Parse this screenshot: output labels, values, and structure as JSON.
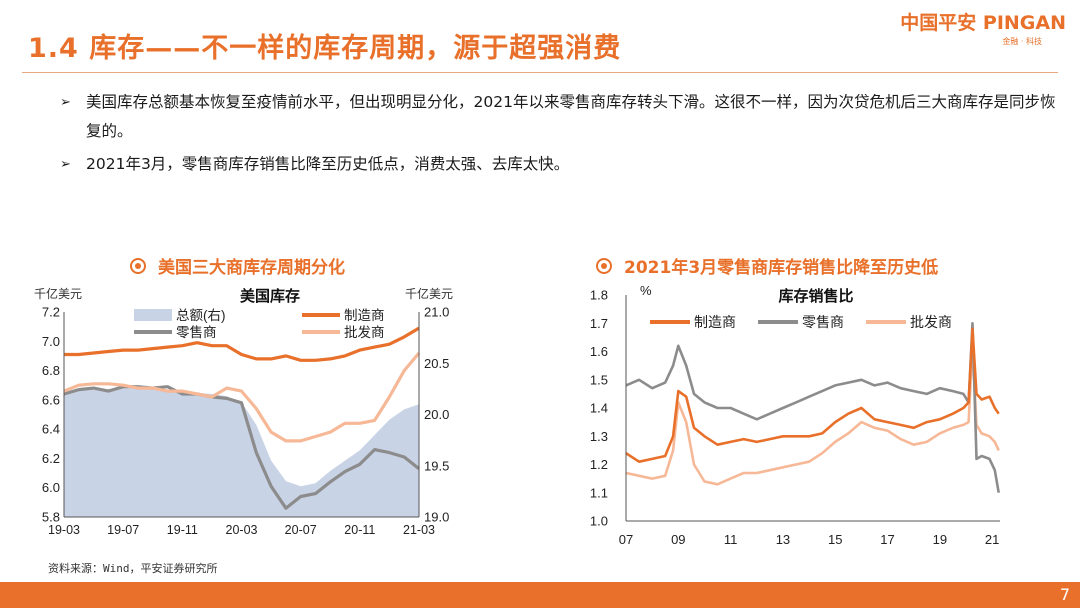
{
  "header": {
    "title": "1.4 库存——不一样的库存周期，源于超强消费",
    "logo_main": "中国平安 PINGAN",
    "logo_sub": "金融 · 科技"
  },
  "bullets": [
    {
      "arrow": "➢",
      "text": "美国库存总额基本恢复至疫情前水平，但出现明显分化，2021年以来零售商库存转头下滑。这很不一样，因为次贷危机后三大商库存是同步恢复的。"
    },
    {
      "arrow": "➢",
      "text": "2021年3月，零售商库存销售比降至历史低点，消费太强、去库太快。"
    }
  ],
  "charts": {
    "left_title": "美国三大商库存周期分化",
    "right_title": "2021年3月零售商库存销售比降至历史低"
  },
  "source": "资料来源：Wind，平安证券研究所",
  "page_number": "7",
  "colors": {
    "accent": "#e8702a",
    "manufacturer": "#e8702a",
    "retail": "#8c8c8c",
    "wholesale": "#f6b896",
    "total": "#c9d3e6"
  },
  "chart_data": [
    {
      "type": "line",
      "title": "美国库存",
      "ylabel_left": "千亿美元",
      "ylabel_right": "千亿美元",
      "ylim": [
        5.8,
        7.2
      ],
      "y2lim": [
        19.0,
        21.0
      ],
      "yticks": [
        "7.2",
        "7.0",
        "6.8",
        "6.6",
        "6.4",
        "6.2",
        "6.0",
        "5.8"
      ],
      "y2ticks": [
        "21.0",
        "20.5",
        "20.0",
        "19.5",
        "19.0"
      ],
      "x": [
        "19-03",
        "19-04",
        "19-05",
        "19-06",
        "19-07",
        "19-08",
        "19-09",
        "19-10",
        "19-11",
        "19-12",
        "20-01",
        "20-02",
        "20-03",
        "20-04",
        "20-05",
        "20-06",
        "20-07",
        "20-08",
        "20-09",
        "20-10",
        "20-11",
        "20-12",
        "21-01",
        "21-02",
        "21-03"
      ],
      "xticks": [
        "19-03",
        "19-07",
        "19-11",
        "20-03",
        "20-07",
        "20-11",
        "21-03"
      ],
      "series": [
        {
          "name": "总额(右)",
          "kind": "area",
          "axis": "right",
          "values": [
            20.2,
            20.23,
            20.24,
            20.25,
            20.26,
            20.25,
            20.26,
            20.24,
            20.23,
            20.21,
            20.2,
            20.18,
            20.12,
            19.9,
            19.55,
            19.35,
            19.3,
            19.33,
            19.45,
            19.55,
            19.65,
            19.8,
            19.95,
            20.05,
            20.1
          ]
        },
        {
          "name": "制造商",
          "kind": "line",
          "axis": "left",
          "values": [
            6.91,
            6.91,
            6.92,
            6.93,
            6.94,
            6.94,
            6.95,
            6.96,
            6.97,
            6.99,
            6.97,
            6.97,
            6.91,
            6.88,
            6.88,
            6.9,
            6.87,
            6.87,
            6.88,
            6.9,
            6.94,
            6.96,
            6.98,
            7.03,
            7.09
          ]
        },
        {
          "name": "零售商",
          "kind": "line",
          "axis": "left",
          "values": [
            6.64,
            6.67,
            6.68,
            6.66,
            6.69,
            6.69,
            6.68,
            6.69,
            6.64,
            6.64,
            6.62,
            6.61,
            6.58,
            6.24,
            6.01,
            5.86,
            5.94,
            5.96,
            6.04,
            6.11,
            6.16,
            6.26,
            6.24,
            6.21,
            6.13
          ]
        },
        {
          "name": "批发商",
          "kind": "line",
          "axis": "left",
          "values": [
            6.66,
            6.7,
            6.71,
            6.71,
            6.7,
            6.68,
            6.68,
            6.66,
            6.66,
            6.64,
            6.62,
            6.68,
            6.66,
            6.54,
            6.38,
            6.32,
            6.32,
            6.35,
            6.38,
            6.44,
            6.44,
            6.46,
            6.62,
            6.8,
            6.92
          ]
        }
      ]
    },
    {
      "type": "line",
      "title": "库存销售比",
      "yunit": "%",
      "ylim": [
        1.0,
        1.8
      ],
      "yticks": [
        "1.8",
        "1.7",
        "1.6",
        "1.5",
        "1.4",
        "1.3",
        "1.2",
        "1.1",
        "1.0"
      ],
      "xrange": [
        2007.0,
        2021.3
      ],
      "xticks": [
        "07",
        "09",
        "11",
        "13",
        "15",
        "17",
        "19",
        "21"
      ],
      "x": [
        2007.0,
        2007.5,
        2008.0,
        2008.5,
        2008.8,
        2009.0,
        2009.3,
        2009.6,
        2010.0,
        2010.5,
        2011.0,
        2011.5,
        2012.0,
        2012.5,
        2013.0,
        2013.5,
        2014.0,
        2014.5,
        2015.0,
        2015.5,
        2016.0,
        2016.5,
        2017.0,
        2017.5,
        2018.0,
        2018.5,
        2019.0,
        2019.5,
        2019.9,
        2020.1,
        2020.25,
        2020.4,
        2020.6,
        2020.9,
        2021.1,
        2021.25
      ],
      "series": [
        {
          "name": "制造商",
          "values": [
            1.24,
            1.21,
            1.22,
            1.23,
            1.3,
            1.46,
            1.44,
            1.33,
            1.3,
            1.27,
            1.28,
            1.29,
            1.28,
            1.29,
            1.3,
            1.3,
            1.3,
            1.31,
            1.35,
            1.38,
            1.4,
            1.36,
            1.35,
            1.34,
            1.33,
            1.35,
            1.36,
            1.38,
            1.4,
            1.42,
            1.68,
            1.45,
            1.43,
            1.44,
            1.4,
            1.38
          ]
        },
        {
          "name": "零售商",
          "values": [
            1.48,
            1.5,
            1.47,
            1.49,
            1.55,
            1.62,
            1.55,
            1.45,
            1.42,
            1.4,
            1.4,
            1.38,
            1.36,
            1.38,
            1.4,
            1.42,
            1.44,
            1.46,
            1.48,
            1.49,
            1.5,
            1.48,
            1.49,
            1.47,
            1.46,
            1.45,
            1.47,
            1.46,
            1.45,
            1.42,
            1.7,
            1.22,
            1.23,
            1.22,
            1.18,
            1.1
          ]
        },
        {
          "name": "批发商",
          "values": [
            1.17,
            1.16,
            1.15,
            1.16,
            1.25,
            1.42,
            1.35,
            1.2,
            1.14,
            1.13,
            1.15,
            1.17,
            1.17,
            1.18,
            1.19,
            1.2,
            1.21,
            1.24,
            1.28,
            1.31,
            1.35,
            1.33,
            1.32,
            1.29,
            1.27,
            1.28,
            1.31,
            1.33,
            1.34,
            1.35,
            1.62,
            1.34,
            1.31,
            1.3,
            1.28,
            1.25
          ]
        }
      ]
    }
  ]
}
